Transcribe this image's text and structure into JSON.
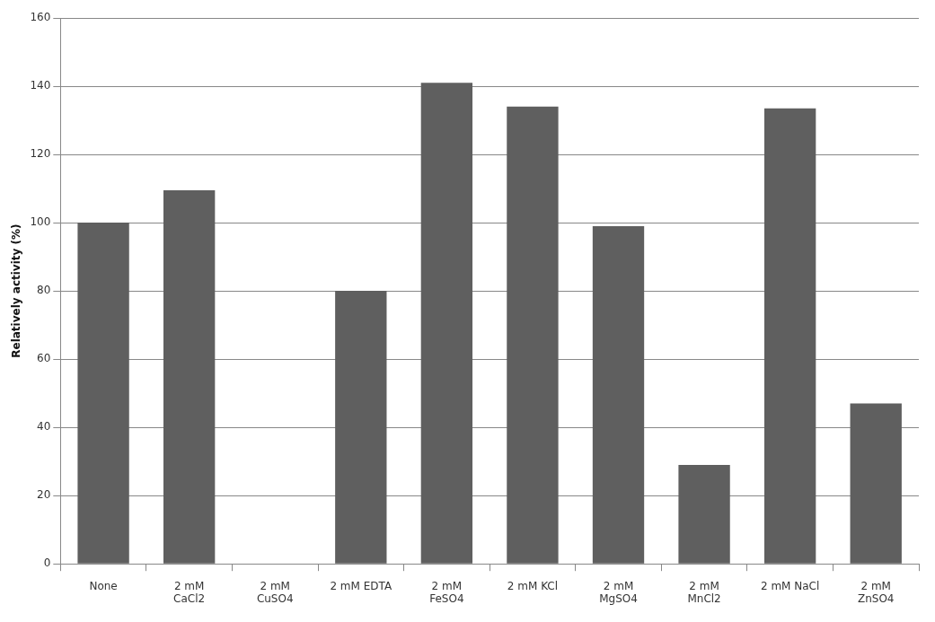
{
  "chart_data": {
    "type": "bar",
    "ylabel": "Relatively activity (%)",
    "categories": [
      "None",
      "2 mM CaCl2",
      "2 mM CuSO4",
      "2 mM EDTA",
      "2 mM FeSO4",
      "2 mM KCl",
      "2 mM MgSO4",
      "2 mM MnCl2",
      "2 mM NaCl",
      "2 mM ZnSO4"
    ],
    "values": [
      100,
      109.5,
      0,
      80,
      141,
      134,
      99,
      29,
      133.5,
      47
    ],
    "color": "#5f5f5f",
    "ylim": [
      0,
      160
    ],
    "yticks": [
      0,
      20,
      40,
      60,
      80,
      100,
      120,
      140,
      160
    ],
    "grid": "y"
  }
}
